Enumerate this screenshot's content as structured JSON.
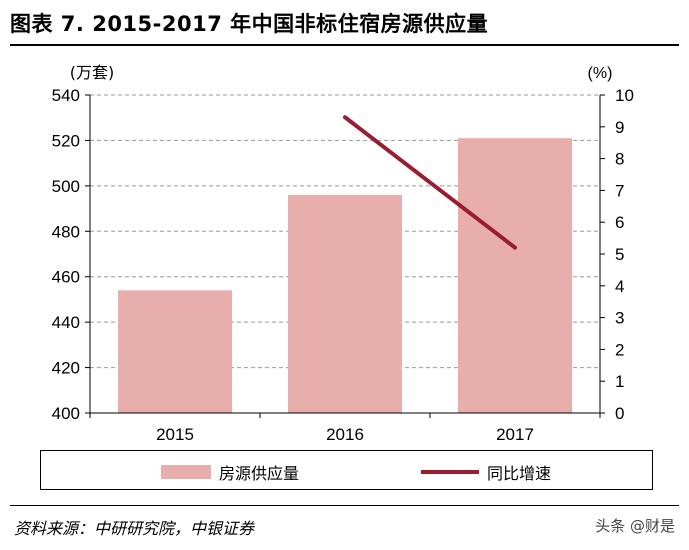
{
  "title": "图表 7. 2015-2017 年中国非标住宿房源供应量",
  "source": "资料来源：中研研究院，中银证券",
  "watermark": "头条 @财是",
  "colors": {
    "bar": "#e8aeab",
    "line": "#9b1b30",
    "grid": "#999999"
  },
  "chart_data": {
    "type": "bar",
    "categories": [
      "2015",
      "2016",
      "2017"
    ],
    "series": [
      {
        "name": "房源供应量",
        "type": "bar",
        "axis": "left",
        "values": [
          454,
          496,
          521
        ]
      },
      {
        "name": "同比增速",
        "type": "line",
        "axis": "right",
        "values": [
          null,
          9.3,
          5.2
        ]
      }
    ],
    "y_left": {
      "label": "(万套)",
      "min": 400,
      "max": 540,
      "ticks": [
        400,
        420,
        440,
        460,
        480,
        500,
        520,
        540
      ]
    },
    "y_right": {
      "label": "(%)",
      "min": 0,
      "max": 10,
      "ticks": [
        0,
        1,
        2,
        3,
        4,
        5,
        6,
        7,
        8,
        9,
        10
      ]
    },
    "grid": true,
    "legend_position": "bottom"
  }
}
